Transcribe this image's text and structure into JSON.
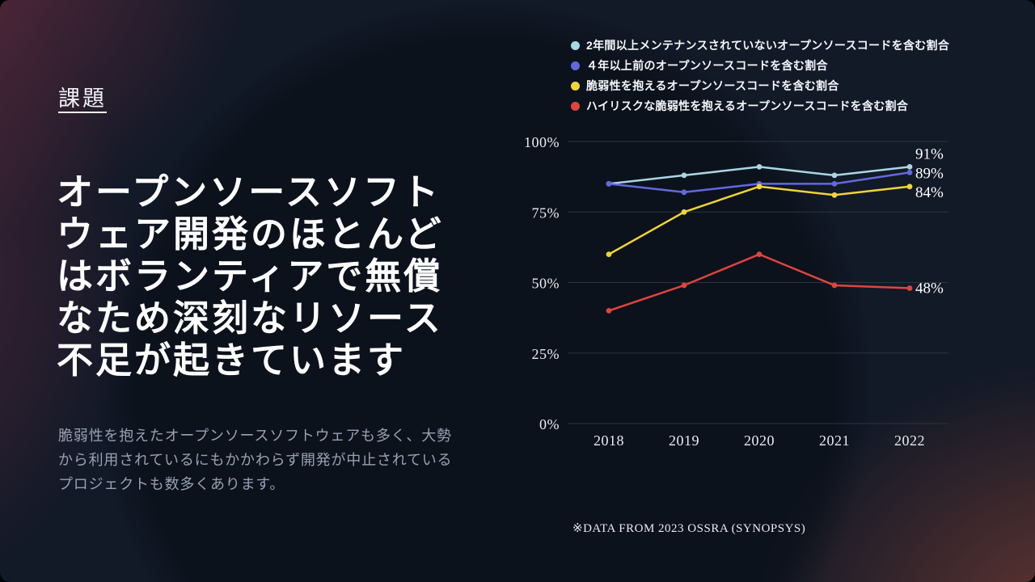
{
  "slide": {
    "kicker": "課題",
    "heading_lines": [
      "オープンソースソフト",
      "ウェア開発のほとんど",
      "はボランティアで無償",
      "なため深刻なリソース",
      "不足が起きています"
    ],
    "body": "脆弱性を抱えたオープンソースソフトウェアも多く、大勢から利用されているにもかかわらず開発が中止されているプロジェクトも数多くあります。",
    "footnote": "※DATA FROM 2023 OSSRA (SYNOPSYS)"
  },
  "colors": {
    "background": "#121927",
    "heading": "#ffffff",
    "body_text": "#97a1b3",
    "grid": "#2c3340",
    "axis_text": "#e8ecf2",
    "series_blue": "#a9d6e5",
    "series_purple": "#6468dd",
    "series_yellow": "#f0d438",
    "series_red": "#e0453c"
  },
  "chart_data": {
    "type": "line",
    "x": [
      "2018",
      "2019",
      "2020",
      "2021",
      "2022"
    ],
    "series": [
      {
        "name": "2年間以上メンテナンスされていないオープンソースコードを含む割合",
        "color": "#a9d6e5",
        "values": [
          85,
          88,
          91,
          88,
          91
        ],
        "end_label": "91%"
      },
      {
        "name": "４年以上前のオープンソースコードを含む割合",
        "color": "#6468dd",
        "values": [
          85,
          82,
          85,
          85,
          89
        ],
        "end_label": "89%"
      },
      {
        "name": "脆弱性を抱えるオープンソースコードを含む割合",
        "color": "#f0d438",
        "values": [
          60,
          75,
          84,
          81,
          84
        ],
        "end_label": "84%"
      },
      {
        "name": "ハイリスクな脆弱性を抱えるオープンソースコードを含む割合",
        "color": "#e0453c",
        "values": [
          40,
          49,
          60,
          49,
          48
        ],
        "end_label": "48%"
      }
    ],
    "ylim": [
      0,
      100
    ],
    "yticks": [
      {
        "value": 100,
        "label": "100%"
      },
      {
        "value": 75,
        "label": "75%"
      },
      {
        "value": 50,
        "label": "50%"
      },
      {
        "value": 25,
        "label": "25%"
      },
      {
        "value": 0,
        "label": "0%"
      }
    ],
    "grid": true,
    "legend_position": "top-right",
    "xlabel": "",
    "ylabel": ""
  }
}
